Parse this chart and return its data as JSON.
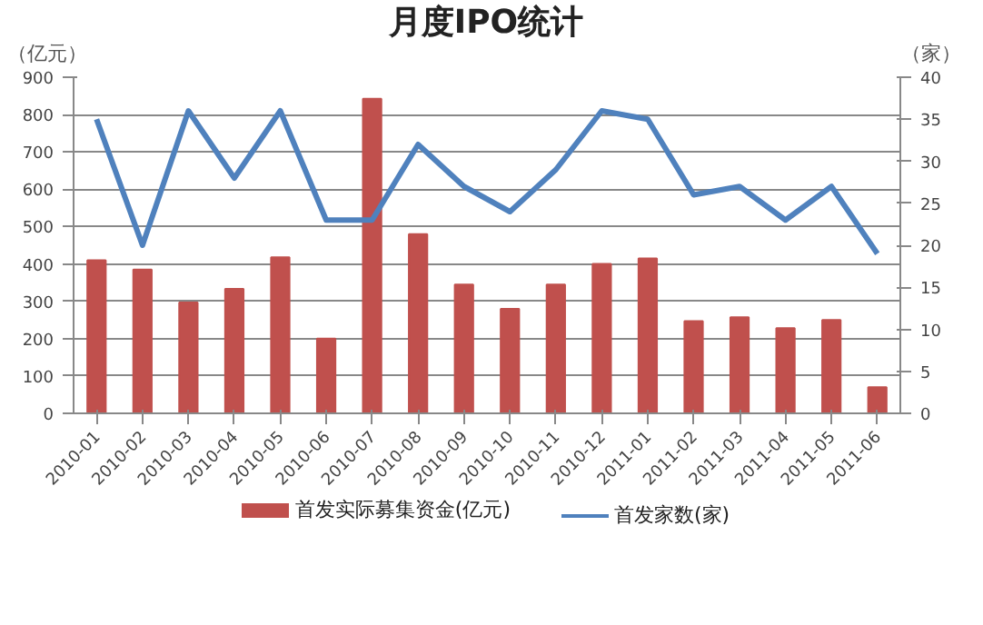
{
  "chart_data": {
    "type": "bar",
    "title": "月度IPO统计",
    "ylabel": "（亿元）",
    "y2label": "（家）",
    "categories": [
      "2010-01",
      "2010-02",
      "2010-03",
      "2010-04",
      "2010-05",
      "2010-06",
      "2010-07",
      "2010-08",
      "2010-09",
      "2010-10",
      "2010-11",
      "2010-12",
      "2011-01",
      "2011-02",
      "2011-03",
      "2011-04",
      "2011-05",
      "2011-06"
    ],
    "series": [
      {
        "name": "首发实际募集资金(亿元)",
        "color": "#c0504d",
        "values": [
          410,
          385,
          297,
          333,
          418,
          200,
          842,
          480,
          345,
          280,
          345,
          400,
          415,
          247,
          257,
          228,
          250,
          70
        ]
      },
      {
        "name": "首发家数(家)",
        "color": "#4f81bd",
        "type": "line",
        "axis": "y2",
        "values": [
          35,
          20,
          36,
          28,
          36,
          23,
          23,
          32,
          27,
          24,
          29,
          36,
          35,
          26,
          27,
          23,
          27,
          19
        ]
      }
    ],
    "ylim": [
      0,
      900
    ],
    "yticks": [
      0,
      100,
      200,
      300,
      400,
      500,
      600,
      700,
      800,
      900
    ],
    "y2lim": [
      0,
      40
    ],
    "y2ticks": [
      0,
      5,
      10,
      15,
      20,
      25,
      30,
      35,
      40
    ],
    "grid": "y",
    "legend": "bottom"
  }
}
